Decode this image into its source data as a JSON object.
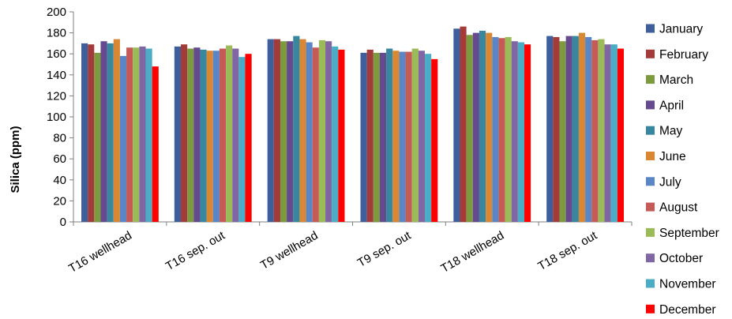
{
  "chart_data": {
    "type": "bar",
    "title": "",
    "xlabel": "",
    "ylabel": "Silica (ppm)",
    "ylim": [
      0,
      200
    ],
    "yticks": [
      0,
      20,
      40,
      60,
      80,
      100,
      120,
      140,
      160,
      180,
      200
    ],
    "grid": false,
    "legend_position": "right",
    "categories": [
      "T16 wellhead",
      "T16 sep. out",
      "T9 wellhead",
      "T9 sep. out",
      "T18 wellhead",
      "T18 sep. out"
    ],
    "series": [
      {
        "name": "January",
        "color": "#3F5F9C",
        "values": [
          170,
          167,
          174,
          161,
          184,
          177
        ]
      },
      {
        "name": "February",
        "color": "#A23B39",
        "values": [
          169,
          169,
          174,
          164,
          186,
          176
        ]
      },
      {
        "name": "March",
        "color": "#7E9A3E",
        "values": [
          161,
          165,
          172,
          161,
          178,
          172
        ]
      },
      {
        "name": "April",
        "color": "#654A8F",
        "values": [
          172,
          166,
          172,
          161,
          180,
          177
        ]
      },
      {
        "name": "May",
        "color": "#37879E",
        "values": [
          170,
          164,
          177,
          165,
          182,
          177
        ]
      },
      {
        "name": "June",
        "color": "#D98732",
        "values": [
          174,
          163,
          174,
          163,
          180,
          180
        ]
      },
      {
        "name": "July",
        "color": "#5B86C6",
        "values": [
          158,
          163,
          171,
          162,
          176,
          176
        ]
      },
      {
        "name": "August",
        "color": "#C65A57",
        "values": [
          166,
          165,
          166,
          162,
          175,
          173
        ]
      },
      {
        "name": "September",
        "color": "#9BBB59",
        "values": [
          166,
          168,
          173,
          165,
          176,
          174
        ]
      },
      {
        "name": "October",
        "color": "#8066A2",
        "values": [
          167,
          165,
          172,
          163,
          172,
          169
        ]
      },
      {
        "name": "November",
        "color": "#4BACC6",
        "values": [
          165,
          157,
          167,
          160,
          171,
          169
        ]
      },
      {
        "name": "December",
        "color": "#FF0000",
        "values": [
          148,
          160,
          164,
          155,
          169,
          165
        ]
      }
    ]
  }
}
